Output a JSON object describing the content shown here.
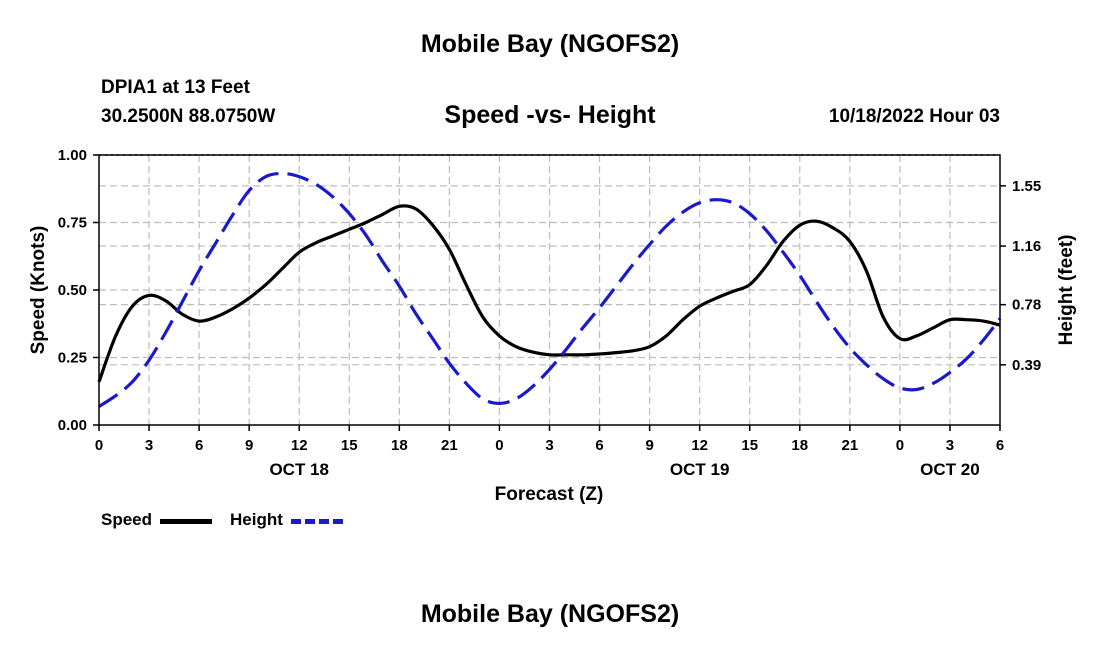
{
  "header": {
    "top_title": "Mobile Bay (NGOFS2)",
    "station": "DPIA1 at 13 Feet",
    "coords": "30.2500N  88.0750W",
    "subtitle": "Speed -vs- Height",
    "datetime": "10/18/2022 Hour 03",
    "bottom_title": "Mobile Bay (NGOFS2)"
  },
  "legend": {
    "speed_label": "Speed",
    "height_label": "Height",
    "speed_color": "#000000",
    "height_color": "#1a1acc"
  },
  "chart_data": {
    "type": "line",
    "title": "Speed -vs- Height",
    "xlabel": "Forecast (Z)",
    "ylabel": "Speed (Knots)",
    "y2label": "Height (feet)",
    "xlim": [
      0,
      54
    ],
    "ylim": [
      0,
      1.0
    ],
    "y2lim": [
      0.0,
      1.75
    ],
    "grid": true,
    "x_ticks": [
      {
        "x": 0,
        "label": "0"
      },
      {
        "x": 3,
        "label": "3"
      },
      {
        "x": 6,
        "label": "6"
      },
      {
        "x": 9,
        "label": "9"
      },
      {
        "x": 12,
        "label": "12"
      },
      {
        "x": 15,
        "label": "15"
      },
      {
        "x": 18,
        "label": "18"
      },
      {
        "x": 21,
        "label": "21"
      },
      {
        "x": 24,
        "label": "0"
      },
      {
        "x": 27,
        "label": "3"
      },
      {
        "x": 30,
        "label": "6"
      },
      {
        "x": 33,
        "label": "9"
      },
      {
        "x": 36,
        "label": "12"
      },
      {
        "x": 39,
        "label": "15"
      },
      {
        "x": 42,
        "label": "18"
      },
      {
        "x": 45,
        "label": "21"
      },
      {
        "x": 48,
        "label": "0"
      },
      {
        "x": 51,
        "label": "3"
      },
      {
        "x": 54,
        "label": "6"
      }
    ],
    "date_labels": [
      {
        "x": 12,
        "label": "OCT 18"
      },
      {
        "x": 36,
        "label": "OCT 19"
      },
      {
        "x": 51,
        "label": "OCT 20"
      }
    ],
    "y_ticks": [
      {
        "v": 0.0,
        "label": "0.00"
      },
      {
        "v": 0.25,
        "label": "0.25"
      },
      {
        "v": 0.5,
        "label": "0.50"
      },
      {
        "v": 0.75,
        "label": "0.75"
      },
      {
        "v": 1.0,
        "label": "1.00"
      }
    ],
    "y2_ticks": [
      {
        "v": 0.39,
        "label": "0.39"
      },
      {
        "v": 0.78,
        "label": "0.78"
      },
      {
        "v": 1.16,
        "label": "1.16"
      },
      {
        "v": 1.55,
        "label": "1.55"
      }
    ],
    "series": [
      {
        "name": "Speed",
        "axis": "left",
        "style": "solid",
        "x": [
          0,
          1,
          2,
          3,
          4,
          5,
          6,
          7,
          8,
          9,
          10,
          11,
          12,
          13,
          14,
          15,
          16,
          17,
          18,
          19,
          20,
          21,
          22,
          23,
          24,
          25,
          26,
          27,
          28,
          29,
          30,
          31,
          32,
          33,
          34,
          35,
          36,
          37,
          38,
          39,
          40,
          41,
          42,
          43,
          44,
          45,
          46,
          47,
          48,
          49,
          50,
          51,
          52,
          53,
          54
        ],
        "values": [
          0.16,
          0.33,
          0.44,
          0.48,
          0.46,
          0.41,
          0.385,
          0.4,
          0.43,
          0.47,
          0.52,
          0.58,
          0.64,
          0.675,
          0.7,
          0.725,
          0.75,
          0.78,
          0.81,
          0.8,
          0.74,
          0.65,
          0.52,
          0.4,
          0.33,
          0.29,
          0.27,
          0.26,
          0.26,
          0.26,
          0.263,
          0.268,
          0.275,
          0.29,
          0.33,
          0.39,
          0.44,
          0.47,
          0.495,
          0.52,
          0.59,
          0.68,
          0.74,
          0.755,
          0.73,
          0.68,
          0.57,
          0.4,
          0.32,
          0.33,
          0.36,
          0.39,
          0.39,
          0.385,
          0.37
        ]
      },
      {
        "name": "Height",
        "axis": "right",
        "style": "dashed",
        "x": [
          0,
          1,
          2,
          3,
          4,
          5,
          6,
          7,
          8,
          9,
          10,
          11,
          12,
          13,
          14,
          15,
          16,
          17,
          18,
          19,
          20,
          21,
          22,
          23,
          24,
          25,
          26,
          27,
          28,
          29,
          30,
          31,
          32,
          33,
          34,
          35,
          36,
          37,
          38,
          39,
          40,
          41,
          42,
          43,
          44,
          45,
          46,
          47,
          48,
          49,
          50,
          51,
          52,
          53,
          54
        ],
        "values": [
          0.12,
          0.19,
          0.28,
          0.42,
          0.6,
          0.8,
          1.0,
          1.18,
          1.36,
          1.52,
          1.61,
          1.63,
          1.61,
          1.56,
          1.48,
          1.37,
          1.23,
          1.06,
          0.9,
          0.72,
          0.56,
          0.4,
          0.27,
          0.17,
          0.14,
          0.17,
          0.25,
          0.36,
          0.49,
          0.63,
          0.76,
          0.9,
          1.04,
          1.17,
          1.29,
          1.38,
          1.44,
          1.46,
          1.44,
          1.37,
          1.26,
          1.12,
          0.97,
          0.8,
          0.64,
          0.5,
          0.39,
          0.3,
          0.24,
          0.23,
          0.27,
          0.34,
          0.43,
          0.55,
          0.69
        ]
      }
    ]
  }
}
